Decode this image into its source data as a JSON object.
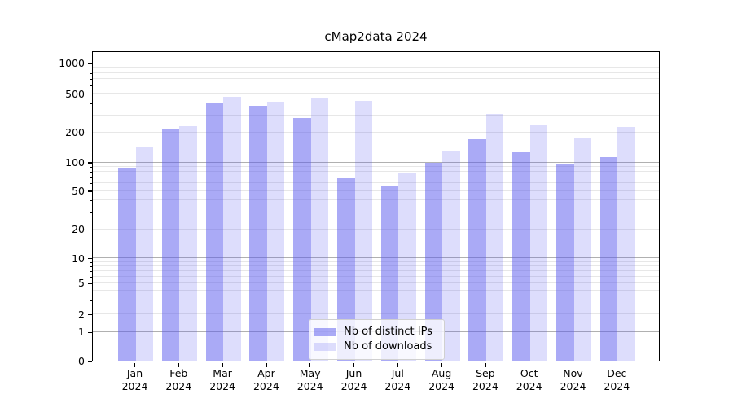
{
  "title": "cMap2data 2024",
  "legend": {
    "items": [
      {
        "label": "Nb of distinct IPs",
        "color": "rgba(85,85,238,0.5)"
      },
      {
        "label": "Nb of downloads",
        "color": "rgba(85,85,238,0.2)"
      }
    ]
  },
  "y_axis": {
    "tick_values": [
      1000,
      500,
      200,
      100,
      50,
      20,
      10,
      5,
      2,
      1,
      0
    ],
    "tick_labels": [
      "1000",
      "500",
      "200",
      "100",
      "50",
      "20",
      "10",
      "5",
      "2",
      "1",
      "0"
    ]
  },
  "x_axis": {
    "year_line": "2024"
  },
  "chart_data": {
    "type": "bar",
    "title": "cMap2data 2024",
    "categories": [
      "Jan",
      "Feb",
      "Mar",
      "Apr",
      "May",
      "Jun",
      "Jul",
      "Aug",
      "Sep",
      "Oct",
      "Nov",
      "Dec"
    ],
    "x_tick_second_line": "2024",
    "series": [
      {
        "name": "Nb of distinct IPs",
        "color": "rgba(85,85,238,0.5)",
        "values": [
          85,
          215,
          400,
          370,
          280,
          67,
          56,
          99,
          170,
          125,
          95,
          113
        ]
      },
      {
        "name": "Nb of downloads",
        "color": "rgba(85,85,238,0.2)",
        "values": [
          140,
          230,
          460,
          408,
          455,
          420,
          77,
          131,
          308,
          235,
          172,
          227
        ]
      }
    ],
    "xlabel": "",
    "ylabel": "",
    "yscale": "log (with linear segment from 0 to 1)",
    "ylim": [
      0,
      1400
    ],
    "y_ticks": [
      0,
      1,
      2,
      5,
      10,
      20,
      50,
      100,
      200,
      500,
      1000
    ],
    "grid": "horizontal, major and minor",
    "legend_position": "lower center inside plot"
  }
}
